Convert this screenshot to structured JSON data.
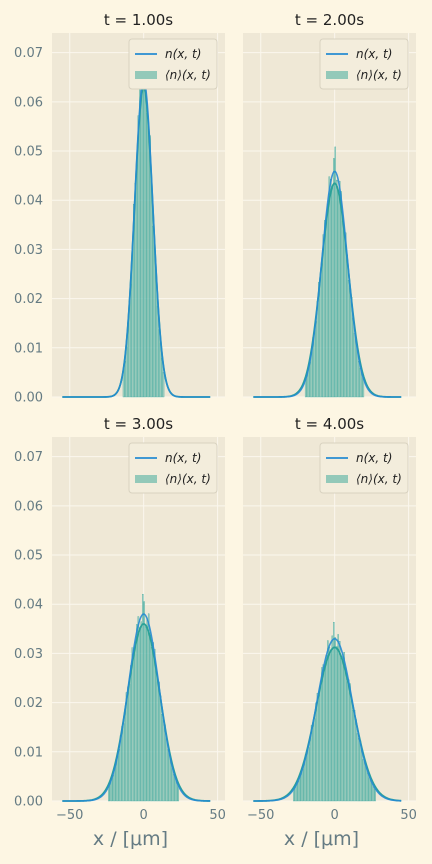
{
  "figure": {
    "xlabel": "x / [μm]"
  },
  "colors": {
    "background": "#fdf6e3",
    "plot_area": "#efe8d6",
    "grid": "#fbf7ee",
    "line": "#268bd2",
    "bars": "#93c9b9",
    "bar_edge": "#2aa198",
    "legend_bg": "#f3eddc",
    "legend_border": "#d8d2c0"
  },
  "chart_data": [
    {
      "type": "line",
      "title": "t = 1.00s",
      "xlim": [
        -62,
        55
      ],
      "ylim": [
        0,
        0.074
      ],
      "yticks": [
        "0.00",
        "0.01",
        "0.02",
        "0.03",
        "0.04",
        "0.05",
        "0.06",
        "0.07"
      ],
      "xticks": [
        "−50",
        "0",
        "50"
      ],
      "xlabel": "",
      "legend": {
        "placement": "top-right",
        "entries": [
          "n(x, t)",
          "⟨n⟩(x, t)"
        ]
      },
      "series": [
        {
          "name": "n(x, t)",
          "kind": "line",
          "mean": 0,
          "sigma": 6.2,
          "x_range": [
            -55,
            45
          ]
        },
        {
          "name": "⟨n⟩(x, t)",
          "kind": "histogram",
          "mean": 0,
          "sigma": 6.0,
          "bin_range": [
            -14,
            14
          ],
          "bin_width": 1
        }
      ]
    },
    {
      "type": "line",
      "title": "t = 2.00s",
      "xlim": [
        -62,
        55
      ],
      "ylim": [
        0,
        0.074
      ],
      "yticks": [
        "0.00",
        "0.01",
        "0.02",
        "0.03",
        "0.04",
        "0.05",
        "0.06",
        "0.07"
      ],
      "xticks": [
        "−50",
        "0",
        "50"
      ],
      "xlabel": "",
      "legend": {
        "placement": "top-right",
        "entries": [
          "n(x, t)",
          "⟨n⟩(x, t)"
        ]
      },
      "series": [
        {
          "name": "n(x, t)",
          "kind": "line",
          "mean": 0,
          "sigma": 8.7,
          "x_range": [
            -55,
            45
          ]
        },
        {
          "name": "⟨n⟩(x, t)",
          "kind": "histogram",
          "mean": 0,
          "sigma": 8.7,
          "bin_range": [
            -20,
            20
          ],
          "bin_width": 1
        }
      ]
    },
    {
      "type": "line",
      "title": "t = 3.00s",
      "xlim": [
        -62,
        55
      ],
      "ylim": [
        0,
        0.074
      ],
      "yticks": [
        "0.00",
        "0.01",
        "0.02",
        "0.03",
        "0.04",
        "0.05",
        "0.06",
        "0.07"
      ],
      "xticks": [
        "−50",
        "0",
        "50"
      ],
      "xlabel": "x / [μm]",
      "legend": {
        "placement": "top-right",
        "entries": [
          "n(x, t)",
          "⟨n⟩(x, t)"
        ]
      },
      "series": [
        {
          "name": "n(x, t)",
          "kind": "line",
          "mean": 0,
          "sigma": 10.5,
          "x_range": [
            -55,
            45
          ]
        },
        {
          "name": "⟨n⟩(x, t)",
          "kind": "histogram",
          "mean": 0,
          "sigma": 10.5,
          "bin_range": [
            -24,
            24
          ],
          "bin_width": 1
        }
      ]
    },
    {
      "type": "line",
      "title": "t = 4.00s",
      "xlim": [
        -62,
        55
      ],
      "ylim": [
        0,
        0.074
      ],
      "yticks": [
        "0.00",
        "0.01",
        "0.02",
        "0.03",
        "0.04",
        "0.05",
        "0.06",
        "0.07"
      ],
      "xticks": [
        "−50",
        "0",
        "50"
      ],
      "xlabel": "x / [μm]",
      "legend": {
        "placement": "top-right",
        "entries": [
          "n(x, t)",
          "⟨n⟩(x, t)"
        ]
      },
      "series": [
        {
          "name": "n(x, t)",
          "kind": "line",
          "mean": 0,
          "sigma": 12.1,
          "x_range": [
            -55,
            45
          ]
        },
        {
          "name": "⟨n⟩(x, t)",
          "kind": "histogram",
          "mean": 0,
          "sigma": 12.1,
          "bin_range": [
            -28,
            28
          ],
          "bin_width": 1
        }
      ]
    }
  ]
}
